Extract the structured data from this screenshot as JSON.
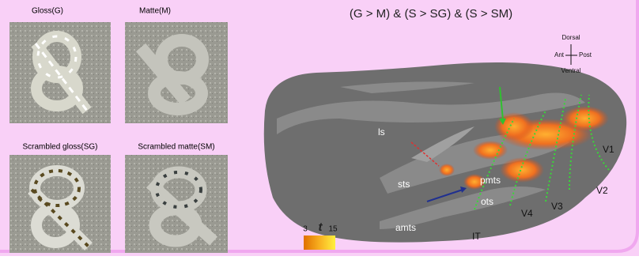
{
  "panels": [
    {
      "caption": "Gloss(G)"
    },
    {
      "caption": "Matte(M)"
    },
    {
      "caption": "Scrambled gloss(SG)"
    },
    {
      "caption": "Scrambled matte(SM)"
    }
  ],
  "brain": {
    "title": "(G > M) & (S > SG) & (S > SM)",
    "orientation": {
      "top": "Dorsal",
      "left": "Ant",
      "right": "Post",
      "bottom": "Ventral"
    },
    "labels": {
      "ls": "ls",
      "sts": "sts",
      "pmts": "pmts",
      "ots": "ots",
      "amts": "amts",
      "it": "IT",
      "v1": "V1",
      "v2": "V2",
      "v3": "V3",
      "v4": "V4"
    },
    "colorbar": {
      "min": "3",
      "symbol": "t",
      "max": "15"
    }
  }
}
